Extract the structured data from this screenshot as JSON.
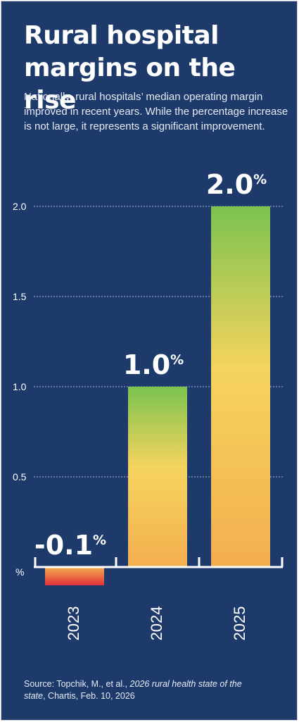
{
  "title": "Rural hospital margins on the rise",
  "subtitle": "Nationally, rural hospitals’ median operating margin improved in recent years. While the percentage increase is not large, it represents a significant improvement.",
  "source": {
    "prefix": "Source: Topchik, M., et al., ",
    "italic": "2026 rural health state of the state",
    "suffix": ", Chartis, Feb. 10, 2026"
  },
  "colors": {
    "background": "#1d3a6b",
    "bar_top_green": "#7cc34f",
    "bar_mid_yellow": "#f5d45e",
    "bar_bottom_orange": "#f4ae4f",
    "negative_red": "#e0303a",
    "text": "#ffffff"
  },
  "chart_data": {
    "type": "bar",
    "categories": [
      "2023",
      "2024",
      "2025"
    ],
    "values": [
      -0.1,
      1.0,
      2.0
    ],
    "data_labels": [
      "-0.1",
      "1.0",
      "2.0"
    ],
    "data_label_suffix": "%",
    "ylabel": "%",
    "yticks": [
      "2.0",
      "1.5",
      "1.0",
      "0.5"
    ],
    "ytick_values": [
      2.0,
      1.5,
      1.0,
      0.5
    ],
    "ylim": [
      -0.1,
      2.0
    ],
    "grid": true
  }
}
